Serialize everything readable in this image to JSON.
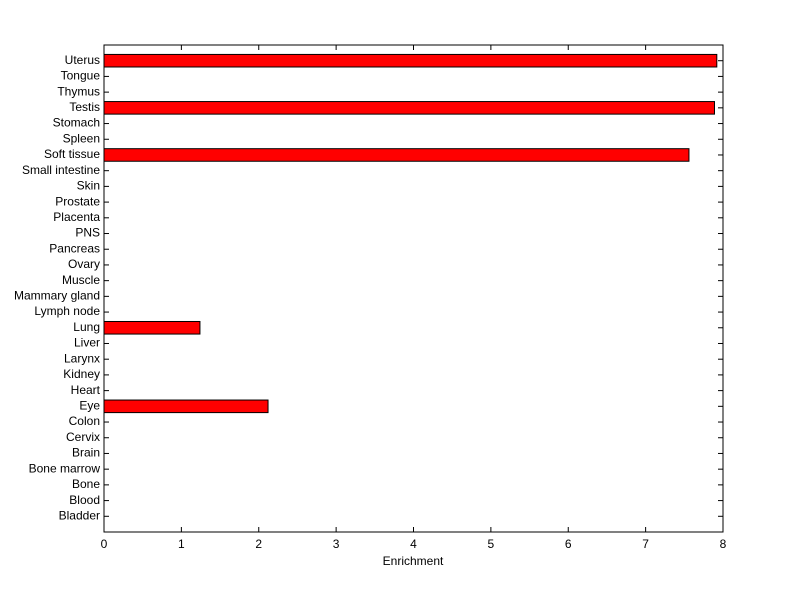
{
  "chart_data": {
    "type": "barh",
    "x_label": "Enrichment",
    "categories": [
      "Uterus",
      "Tongue",
      "Thymus",
      "Testis",
      "Stomach",
      "Spleen",
      "Soft tissue",
      "Small intestine",
      "Skin",
      "Prostate",
      "Placenta",
      "PNS",
      "Pancreas",
      "Ovary",
      "Muscle",
      "Mammary gland",
      "Lymph node",
      "Lung",
      "Liver",
      "Larynx",
      "Kidney",
      "Heart",
      "Eye",
      "Colon",
      "Cervix",
      "Brain",
      "Bone marrow",
      "Bone",
      "Blood",
      "Bladder"
    ],
    "values": [
      7.92,
      0,
      0,
      7.89,
      0,
      0,
      7.56,
      0,
      0,
      0,
      0,
      0,
      0,
      0,
      0,
      0,
      0,
      1.24,
      0,
      0,
      0,
      0,
      2.12,
      0,
      0,
      0,
      0,
      0,
      0,
      0
    ],
    "color": "#ff0000",
    "xlim": [
      0,
      8
    ],
    "xticks": [
      0,
      1,
      2,
      3,
      4,
      5,
      6,
      7,
      8
    ]
  }
}
